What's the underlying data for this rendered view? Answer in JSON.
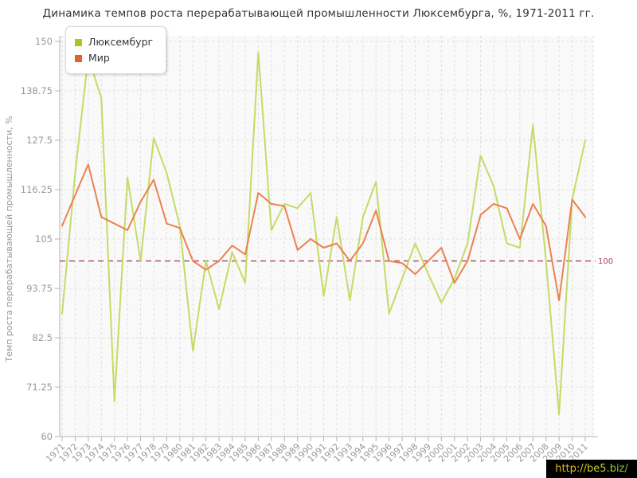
{
  "title": "Динамика темпов роста перерабатывающей промышленности Люксембурга, %, 1971-2011 гг.",
  "watermark": "http://be5.biz/",
  "chart_data": {
    "type": "line",
    "title": "Динамика темпов роста перерабатывающей промышленности Люксембурга, %, 1971-2011 гг.",
    "ylabel": "Темп роста перерабатывающей промышленности, %",
    "xlabel": "",
    "ylim": [
      60,
      150
    ],
    "yticks": [
      150,
      138.75,
      127.5,
      116.25,
      105,
      93.75,
      82.5,
      71.25,
      60
    ],
    "grid": true,
    "legend_position": "top-left",
    "reference_line": {
      "value": 100,
      "label": "100",
      "color": "#a8495a"
    },
    "x": [
      "1971",
      "1972",
      "1973",
      "1974",
      "1975",
      "1976",
      "1977",
      "1978",
      "1979",
      "1980",
      "1981",
      "1982",
      "1983",
      "1984",
      "1985",
      "1986",
      "1987",
      "1988",
      "1989",
      "1990",
      "1991",
      "1992",
      "1993",
      "1994",
      "1995",
      "1996",
      "1997",
      "1998",
      "1999",
      "2000",
      "2001",
      "2002",
      "2003",
      "2004",
      "2005",
      "2006",
      "2007",
      "2008",
      "2009",
      "2010",
      "2011"
    ],
    "series": [
      {
        "name": "Люксембург",
        "color": "#c3dc64",
        "legend_color": "#a6c822",
        "values": [
          88,
          120,
          146.5,
          137,
          68,
          119,
          100,
          128,
          120,
          108,
          79.5,
          100,
          89,
          102,
          95,
          147.5,
          107,
          113,
          112,
          115.5,
          92,
          110,
          91,
          110,
          118,
          88,
          96,
          104,
          97,
          90.5,
          96,
          104,
          124,
          117,
          104,
          103,
          131,
          100,
          65,
          114,
          127.5
        ]
      },
      {
        "name": "Мир",
        "color": "#ec8150",
        "legend_color": "#e2622a",
        "values": [
          108,
          115,
          122,
          110,
          108.5,
          107,
          113.5,
          118.5,
          108.5,
          107.5,
          100,
          98,
          100,
          103.5,
          101.5,
          115.5,
          113,
          112.5,
          102.5,
          105,
          103,
          104,
          100,
          104,
          111.5,
          100,
          99.5,
          97,
          100,
          103,
          95,
          100,
          110.5,
          113,
          112,
          105,
          113,
          108,
          91,
          114,
          110
        ]
      }
    ],
    "axis_color": "#b3b3b3",
    "grid_color": "#dedede",
    "tick_label_color": "#999999",
    "plot_bg": "#f9f9f9"
  }
}
